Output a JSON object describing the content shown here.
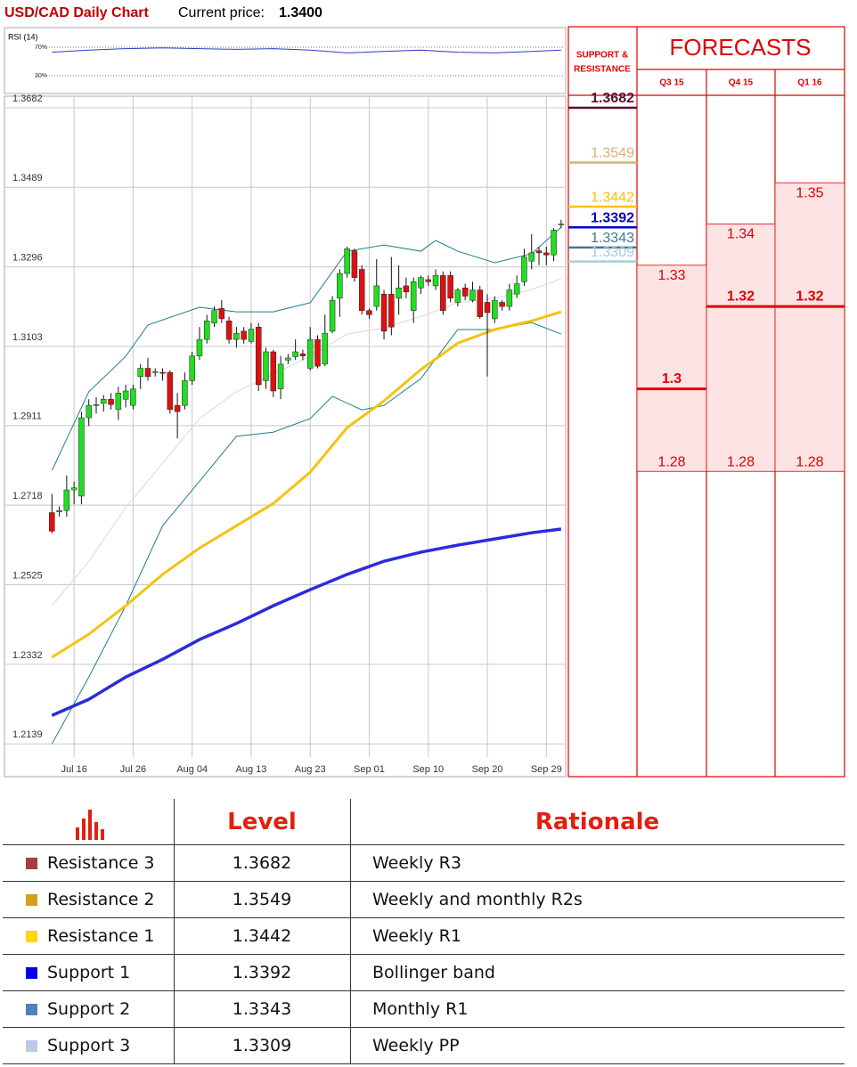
{
  "header": {
    "title": "USD/CAD Daily Chart",
    "price_label": "Current price:",
    "price": "1.3400"
  },
  "chart_data": [
    {
      "type": "line",
      "title": "RSI (14)",
      "color": "#2a3fc0",
      "xlim": [
        -1,
        69.5
      ],
      "ylim": [
        5,
        97.5
      ],
      "yticks": [
        {
          "value": 70,
          "label": "70%"
        },
        {
          "value": 30,
          "label": "30%"
        }
      ],
      "x": [
        0,
        5,
        10,
        15,
        20,
        25,
        30,
        35,
        40,
        45,
        50,
        55,
        60,
        65,
        69
      ],
      "values": [
        63,
        66,
        68,
        69,
        68,
        67,
        68,
        66,
        62,
        64,
        66,
        63,
        62,
        64,
        66
      ]
    },
    {
      "type": "candlestick",
      "up_color": "#22dd22",
      "down_color": "#dd1111",
      "xlim": [
        -1,
        69.5
      ],
      "ylim": [
        1.2107,
        1.371
      ],
      "grid": true,
      "yticks": [
        1.3682,
        1.3489,
        1.3296,
        1.3103,
        1.2911,
        1.2718,
        1.2525,
        1.2332,
        1.2139
      ],
      "xticks": [
        {
          "value": 3,
          "label": "Jul 16"
        },
        {
          "value": 11,
          "label": "Jul 26"
        },
        {
          "value": 19,
          "label": "Aug 04"
        },
        {
          "value": 27,
          "label": "Aug 13"
        },
        {
          "value": 35,
          "label": "Aug 23"
        },
        {
          "value": 43,
          "label": "Sep 01"
        },
        {
          "value": 51,
          "label": "Sep 10"
        },
        {
          "value": 59,
          "label": "Sep 20"
        },
        {
          "value": 67,
          "label": "Sep 29"
        }
      ],
      "ohlc": [
        [
          1.27,
          1.2745,
          1.265,
          1.2655
        ],
        [
          1.2702,
          1.2715,
          1.269,
          1.2705
        ],
        [
          1.2705,
          1.279,
          1.269,
          1.2755
        ],
        [
          1.2755,
          1.2775,
          1.272,
          1.276
        ],
        [
          1.274,
          1.2945,
          1.272,
          1.293
        ],
        [
          1.293,
          1.2975,
          1.291,
          1.296
        ],
        [
          1.296,
          1.298,
          1.294,
          1.2962
        ],
        [
          1.2965,
          1.2985,
          1.2945,
          1.2975
        ],
        [
          1.2975,
          1.299,
          1.295,
          1.2962
        ],
        [
          1.295,
          1.3005,
          1.2925,
          1.299
        ],
        [
          1.2975,
          1.301,
          1.2955,
          1.2995
        ],
        [
          1.296,
          1.301,
          1.295,
          1.3
        ],
        [
          1.303,
          1.306,
          1.3,
          1.305
        ],
        [
          1.305,
          1.3075,
          1.302,
          1.303
        ],
        [
          1.304,
          1.305,
          1.303,
          1.3042
        ],
        [
          1.304,
          1.305,
          1.302,
          1.3038
        ],
        [
          1.304,
          1.3045,
          1.294,
          1.295
        ],
        [
          1.296,
          1.299,
          1.288,
          1.2945
        ],
        [
          1.296,
          1.304,
          1.295,
          1.302
        ],
        [
          1.302,
          1.309,
          1.301,
          1.308
        ],
        [
          1.308,
          1.315,
          1.307,
          1.312
        ],
        [
          1.312,
          1.318,
          1.311,
          1.3165
        ],
        [
          1.316,
          1.32,
          1.315,
          1.319
        ],
        [
          1.3195,
          1.3215,
          1.316,
          1.317
        ],
        [
          1.3165,
          1.3175,
          1.311,
          1.312
        ],
        [
          1.312,
          1.315,
          1.31,
          1.3135
        ],
        [
          1.314,
          1.315,
          1.311,
          1.312
        ],
        [
          1.3115,
          1.316,
          1.311,
          1.3145
        ],
        [
          1.315,
          1.316,
          1.2995,
          1.301
        ],
        [
          1.302,
          1.31,
          1.3,
          1.309
        ],
        [
          1.309,
          1.3095,
          1.298,
          1.2995
        ],
        [
          1.3,
          1.308,
          1.2975,
          1.306
        ],
        [
          1.307,
          1.3085,
          1.306,
          1.3075
        ],
        [
          1.3078,
          1.312,
          1.307,
          1.309
        ],
        [
          1.3085,
          1.3095,
          1.307,
          1.308
        ],
        [
          1.305,
          1.315,
          1.3045,
          1.312
        ],
        [
          1.312,
          1.313,
          1.305,
          1.3055
        ],
        [
          1.306,
          1.318,
          1.3055,
          1.3135
        ],
        [
          1.314,
          1.3225,
          1.3135,
          1.3215
        ],
        [
          1.322,
          1.329,
          1.3175,
          1.328
        ],
        [
          1.328,
          1.3345,
          1.327,
          1.334
        ],
        [
          1.3335,
          1.334,
          1.326,
          1.327
        ],
        [
          1.329,
          1.33,
          1.318,
          1.319
        ],
        [
          1.319,
          1.3195,
          1.317,
          1.318
        ],
        [
          1.32,
          1.3315,
          1.319,
          1.325
        ],
        [
          1.323,
          1.324,
          1.312,
          1.314
        ],
        [
          1.323,
          1.332,
          1.313,
          1.315
        ],
        [
          1.322,
          1.33,
          1.318,
          1.3245
        ],
        [
          1.325,
          1.327,
          1.322,
          1.3235
        ],
        [
          1.319,
          1.327,
          1.316,
          1.326
        ],
        [
          1.3245,
          1.3275,
          1.323,
          1.327
        ],
        [
          1.3265,
          1.3275,
          1.325,
          1.326
        ],
        [
          1.325,
          1.329,
          1.324,
          1.3275
        ],
        [
          1.3275,
          1.3285,
          1.318,
          1.319
        ],
        [
          1.3275,
          1.3285,
          1.321,
          1.322
        ],
        [
          1.321,
          1.3245,
          1.32,
          1.324
        ],
        [
          1.3245,
          1.3255,
          1.3215,
          1.3225
        ],
        [
          1.3215,
          1.326,
          1.321,
          1.324
        ],
        [
          1.324,
          1.325,
          1.317,
          1.3175
        ],
        [
          1.321,
          1.323,
          1.303,
          1.3185
        ],
        [
          1.317,
          1.3225,
          1.316,
          1.3215
        ],
        [
          1.321,
          1.3215,
          1.319,
          1.32
        ],
        [
          1.32,
          1.3255,
          1.319,
          1.324
        ],
        [
          1.323,
          1.3275,
          1.322,
          1.3255
        ],
        [
          1.326,
          1.334,
          1.325,
          1.332
        ],
        [
          1.331,
          1.3375,
          1.329,
          1.333
        ],
        [
          1.3335,
          1.3345,
          1.33,
          1.333
        ],
        [
          1.333,
          1.3345,
          1.33,
          1.3325
        ],
        [
          1.3325,
          1.339,
          1.331,
          1.3385
        ],
        [
          1.34,
          1.341,
          1.339,
          1.34
        ]
      ],
      "series": [
        {
          "color": "#1d7f86",
          "x": [
            0,
            5,
            10,
            13,
            20,
            25,
            30,
            35,
            40,
            45,
            50,
            52,
            55,
            60,
            65,
            69
          ],
          "values": [
            1.2802,
            1.2993,
            1.3079,
            1.3155,
            1.3198,
            1.3187,
            1.3187,
            1.3209,
            1.3334,
            1.3349,
            1.3334,
            1.336,
            1.3334,
            1.3306,
            1.3328,
            1.3392
          ]
        },
        {
          "color": "#1d7f86",
          "x": [
            0,
            5,
            10,
            15,
            20,
            25,
            30,
            35,
            38,
            42,
            45,
            50,
            55,
            60,
            65,
            69
          ],
          "values": [
            1.2139,
            1.2301,
            1.2474,
            1.2668,
            1.2776,
            1.2885,
            1.2895,
            1.2928,
            1.2982,
            1.2949,
            1.296,
            1.3025,
            1.3144,
            1.3144,
            1.3161,
            1.3133
          ]
        },
        {
          "color": "#d8d8d8",
          "x": [
            0,
            5,
            10,
            15,
            20,
            25,
            30,
            35,
            40,
            45,
            50,
            55,
            60,
            65,
            69
          ],
          "values": [
            1.2474,
            1.2582,
            1.2712,
            1.282,
            1.2928,
            1.2993,
            1.3036,
            1.3079,
            1.3133,
            1.3148,
            1.3176,
            1.3209,
            1.322,
            1.3241,
            1.3267
          ]
        },
        {
          "color": "#f5c211",
          "width": 3,
          "x": [
            0,
            5,
            10,
            15,
            20,
            25,
            30,
            35,
            40,
            45,
            50,
            55,
            60,
            65,
            69
          ],
          "values": [
            1.2349,
            1.2405,
            1.2474,
            1.255,
            1.2614,
            1.2668,
            1.2722,
            1.2798,
            1.2906,
            1.2971,
            1.3047,
            1.3111,
            1.3144,
            1.3165,
            1.3187
          ]
        },
        {
          "color": "#2b2bdc",
          "width": 3.5,
          "x": [
            0,
            5,
            10,
            15,
            20,
            25,
            30,
            35,
            40,
            45,
            50,
            55,
            60,
            65,
            69
          ],
          "values": [
            1.2208,
            1.2247,
            1.2301,
            1.2344,
            1.2392,
            1.2431,
            1.2474,
            1.2513,
            1.255,
            1.2582,
            1.2604,
            1.2621,
            1.2636,
            1.2651,
            1.266
          ]
        }
      ]
    }
  ],
  "levels": {
    "title_lines": [
      "SUPPORT &",
      "RESISTANCE"
    ]
  },
  "forecasts": {
    "title": "FORECASTS",
    "periods": [
      {
        "label": "Q3 15",
        "high": 1.33,
        "mid": 1.3,
        "low": 1.28
      },
      {
        "label": "Q4 15",
        "high": 1.34,
        "mid": 1.32,
        "low": 1.28
      },
      {
        "label": "Q1 16",
        "high": 1.35,
        "mid": 1.32,
        "low": 1.28
      }
    ]
  },
  "table": {
    "headers": [
      "Level",
      "Rationale"
    ],
    "rows": [
      {
        "name": "Resistance 3",
        "color": "#a04040",
        "line_color": "#5c0f2f",
        "level": 1.3682,
        "rationale": "Weekly R3"
      },
      {
        "name": "Resistance 2",
        "color": "#d4a017",
        "line_color": "#d8b070",
        "level": 1.3549,
        "rationale": "Weekly and monthly R2s"
      },
      {
        "name": "Resistance 1",
        "color": "#ffd700",
        "line_color": "#ffc000",
        "level": 1.3442,
        "rationale": "Weekly R1"
      },
      {
        "name": "Support 1",
        "color": "#0000ee",
        "line_color": "#0000cc",
        "level": 1.3392,
        "rationale": "Bollinger band"
      },
      {
        "name": "Support 2",
        "color": "#4f81bd",
        "line_color": "#3f7796",
        "level": 1.3343,
        "rationale": "Monthly R1"
      },
      {
        "name": "Support 3",
        "color": "#b8cce4",
        "line_color": "#a6cdd6",
        "level": 1.3309,
        "rationale": "Weekly PP"
      }
    ]
  }
}
